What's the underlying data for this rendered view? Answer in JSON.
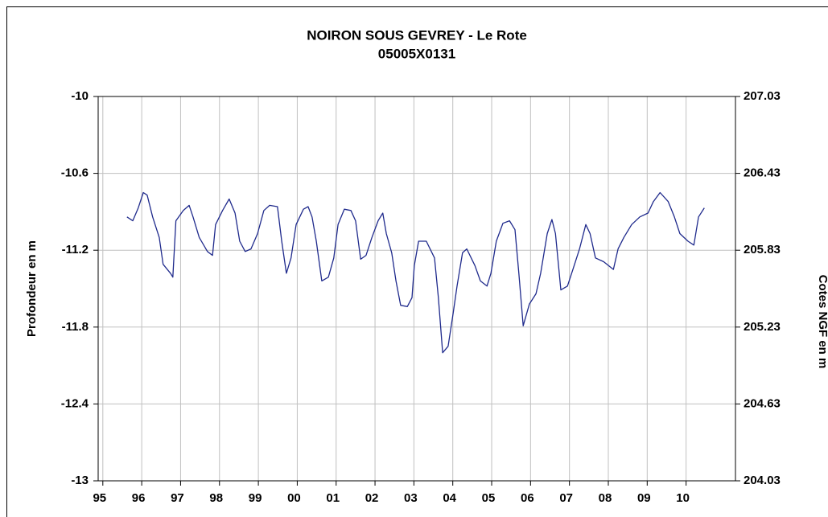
{
  "chart_data": {
    "type": "line",
    "title": "NOIRON SOUS GEVREY - Le Rote",
    "subtitle": "05005X0131",
    "ylabel": "Profondeur en m",
    "y2label": "Cotes NGF en m",
    "color": "#1f2a8c",
    "grid": true,
    "xlim": [
      1994.88,
      2011.27
    ],
    "xticks": [
      {
        "value": 1995,
        "label": "95"
      },
      {
        "value": 1996,
        "label": "96"
      },
      {
        "value": 1997,
        "label": "97"
      },
      {
        "value": 1998,
        "label": "98"
      },
      {
        "value": 1999,
        "label": "99"
      },
      {
        "value": 2000,
        "label": "00"
      },
      {
        "value": 2001,
        "label": "01"
      },
      {
        "value": 2002,
        "label": "02"
      },
      {
        "value": 2003,
        "label": "03"
      },
      {
        "value": 2004,
        "label": "04"
      },
      {
        "value": 2005,
        "label": "05"
      },
      {
        "value": 2006,
        "label": "06"
      },
      {
        "value": 2007,
        "label": "07"
      },
      {
        "value": 2008,
        "label": "08"
      },
      {
        "value": 2009,
        "label": "09"
      },
      {
        "value": 2010,
        "label": "10"
      }
    ],
    "ylim": [
      -13,
      -10
    ],
    "yticks": [
      -10,
      -10.6,
      -11.2,
      -11.8,
      -12.4,
      -13
    ],
    "y2lim": [
      204.03,
      207.03
    ],
    "y2ticks": [
      207.03,
      206.43,
      205.83,
      205.23,
      204.63,
      204.03
    ],
    "x": [
      1995.62,
      1995.77,
      1995.91,
      1996.04,
      1996.14,
      1996.28,
      1996.45,
      1996.55,
      1996.74,
      1996.8,
      1996.88,
      1997.07,
      1997.22,
      1997.32,
      1997.48,
      1997.69,
      1997.82,
      1997.9,
      1998.08,
      1998.25,
      1998.4,
      1998.52,
      1998.66,
      1998.81,
      1998.98,
      1999.14,
      1999.29,
      1999.49,
      1999.6,
      1999.72,
      1999.84,
      1999.97,
      2000.16,
      2000.28,
      2000.38,
      2000.49,
      2000.63,
      2000.8,
      2000.94,
      2001.05,
      2001.21,
      2001.38,
      2001.5,
      2001.63,
      2001.77,
      2001.92,
      2002.08,
      2002.2,
      2002.29,
      2002.43,
      2002.54,
      2002.66,
      2002.83,
      2002.95,
      2003.01,
      2003.12,
      2003.32,
      2003.53,
      2003.63,
      2003.74,
      2003.88,
      2004.01,
      2004.11,
      2004.25,
      2004.36,
      2004.57,
      2004.71,
      2004.88,
      2004.98,
      2005.12,
      2005.29,
      2005.46,
      2005.6,
      2005.7,
      2005.81,
      2005.97,
      2006.14,
      2006.26,
      2006.43,
      2006.55,
      2006.64,
      2006.78,
      2006.95,
      2007.09,
      2007.26,
      2007.42,
      2007.53,
      2007.67,
      2007.88,
      2008.13,
      2008.25,
      2008.4,
      2008.6,
      2008.81,
      2009.02,
      2009.16,
      2009.33,
      2009.54,
      2009.7,
      2009.84,
      2010.05,
      2010.2,
      2010.32,
      2010.47
    ],
    "values": [
      -10.94,
      -10.97,
      -10.87,
      -10.75,
      -10.77,
      -10.94,
      -11.1,
      -11.31,
      -11.38,
      -11.41,
      -10.97,
      -10.89,
      -10.85,
      -10.94,
      -11.1,
      -11.21,
      -11.24,
      -11.0,
      -10.89,
      -10.8,
      -10.91,
      -11.13,
      -11.21,
      -11.19,
      -11.07,
      -10.89,
      -10.85,
      -10.86,
      -11.13,
      -11.38,
      -11.26,
      -11.0,
      -10.88,
      -10.86,
      -10.94,
      -11.13,
      -11.44,
      -11.41,
      -11.26,
      -11.0,
      -10.88,
      -10.89,
      -10.97,
      -11.27,
      -11.24,
      -11.1,
      -10.97,
      -10.91,
      -11.07,
      -11.22,
      -11.44,
      -11.63,
      -11.64,
      -11.57,
      -11.32,
      -11.13,
      -11.13,
      -11.26,
      -11.57,
      -12.0,
      -11.95,
      -11.69,
      -11.48,
      -11.22,
      -11.19,
      -11.32,
      -11.44,
      -11.48,
      -11.38,
      -11.13,
      -10.99,
      -10.97,
      -11.04,
      -11.38,
      -11.79,
      -11.62,
      -11.54,
      -11.38,
      -11.07,
      -10.96,
      -11.07,
      -11.51,
      -11.48,
      -11.35,
      -11.19,
      -11.0,
      -11.07,
      -11.26,
      -11.29,
      -11.35,
      -11.19,
      -11.1,
      -11.0,
      -10.94,
      -10.91,
      -10.82,
      -10.75,
      -10.82,
      -10.94,
      -11.07,
      -11.13,
      -11.16,
      -10.94,
      -10.87
    ]
  }
}
